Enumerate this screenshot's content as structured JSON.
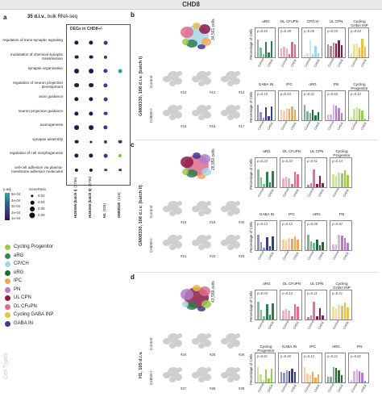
{
  "header": {
    "title": "CHD8"
  },
  "panel_a": {
    "letter": "a",
    "subtitle_prefix": "35 d.i.v.",
    "subtitle_rest": ", bulk RNA-seq",
    "box_title": "DEGs in CHD8+/-",
    "rows": [
      "regulation of trans-synaptic signaling",
      "modulation of chemical synaptic transmission",
      "synapse organization",
      "regulation of neuron projection development",
      "axon guidance",
      "neuron projection guidance",
      "axonogenesis",
      "synapse assembly",
      "regulation of cell morphogenesis",
      "cell-cell adhesion via plasma-membrane adhesion molecules"
    ],
    "columns": [
      "HUES66 (batch I)",
      "HUES66 (batch II)",
      "H1",
      "GM08330"
    ],
    "column_counts": [
      "(3795)",
      "(3796)",
      "(928)",
      "(318)"
    ],
    "padj_label": "p.adj",
    "padj_ticks": [
      "5e-04",
      "4e-04",
      "3e-04",
      "2e-04",
      "1e-04"
    ],
    "gene_ratio_label": "GeneRatio",
    "gene_ratio_ticks": [
      "0.02",
      "0.04",
      "0.06",
      "0.08"
    ],
    "dots": [
      [
        0.06,
        0.06,
        0.05,
        0.0
      ],
      [
        0.05,
        0.05,
        0.04,
        0.0
      ],
      [
        0.07,
        0.07,
        0.06,
        0.05
      ],
      [
        0.07,
        0.07,
        0.06,
        0.0
      ],
      [
        0.06,
        0.06,
        0.05,
        0.0
      ],
      [
        0.06,
        0.06,
        0.05,
        0.0
      ],
      [
        0.07,
        0.07,
        0.06,
        0.0
      ],
      [
        0.05,
        0.02,
        0.04,
        0.05
      ],
      [
        0.06,
        0.06,
        0.05,
        0.04
      ],
      [
        0.04,
        0.04,
        0.03,
        0.03
      ]
    ]
  },
  "cell_types": {
    "title": "Cell Types",
    "items": [
      {
        "label": "Cycling Progenitor",
        "color": "#9acd4a"
      },
      {
        "label": "aRG",
        "color": "#2e8b57"
      },
      {
        "label": "CP/CH",
        "color": "#a7d3e8"
      },
      {
        "label": "oRG",
        "color": "#1f6b3a"
      },
      {
        "label": "IPC",
        "color": "#f0a858"
      },
      {
        "label": "PN",
        "color": "#b37bc9"
      },
      {
        "label": "UL CPN",
        "color": "#8b1a4a"
      },
      {
        "label": "DL CFuPN",
        "color": "#e06b8b"
      },
      {
        "label": "Cycling GABA INP",
        "color": "#e6c14b"
      },
      {
        "label": "GABA IN",
        "color": "#3a3a8e"
      }
    ]
  },
  "panel_b": {
    "letter": "b",
    "row_label": "GM08330, 108 d.i.v. (batch I)",
    "cells": "34,561 cells",
    "control": "Control",
    "mutant": "CHD8+/-",
    "ids": [
      "#12",
      "#13",
      "#14",
      "#15",
      "#16",
      "#17"
    ],
    "charts_top": [
      {
        "title": "aRG",
        "p": "p=0.83"
      },
      {
        "title": "DL CFuPN",
        "p": "p=0.39"
      },
      {
        "title": "CP/CH",
        "p": "p=0.26"
      },
      {
        "title": "UL CPN",
        "p": "p=0.03"
      },
      {
        "title": "Cycling GABA INP",
        "p": "p=0.83"
      }
    ],
    "charts_bottom": [
      {
        "title": "GABA IN",
        "p": "p=0.15"
      },
      {
        "title": "IPC",
        "p": "p=0.83"
      },
      {
        "title": "oRG",
        "p": "p=0.41"
      },
      {
        "title": "PN",
        "p": "p=0.83"
      },
      {
        "title": "Cycling Progenitor",
        "p": "p=0.12"
      }
    ],
    "ylabel": "Percentage of Cells"
  },
  "panel_c": {
    "letter": "c",
    "row_label": "GM08330, 108 d.i.v. (batch II)",
    "cells": "28,950 cells",
    "control": "Control",
    "mutant": "CHD8+/-",
    "ids": [
      "#18",
      "#19",
      "#20",
      "#21",
      "#22",
      "#23"
    ],
    "charts_top": [
      {
        "title": "aRG",
        "p": "p=0.23"
      },
      {
        "title": "DL CFuPN",
        "p": "p=0.32"
      },
      {
        "title": "UL CPN",
        "p": "p=0.51"
      },
      {
        "title": "Cycling Progenitor",
        "p": "p=0.14"
      }
    ],
    "charts_bottom": [
      {
        "title": "GABA IN",
        "p": "p=0.13"
      },
      {
        "title": "IPC",
        "p": "p=0.12"
      },
      {
        "title": "oRG",
        "p": "p=0.05"
      },
      {
        "title": "PN",
        "p": "p=0.42"
      }
    ],
    "ylabel": "Percentage of Cells"
  },
  "panel_d": {
    "letter": "d",
    "row_label": "H1, 105 d.i.v.",
    "cells": "43,559 cells",
    "control": "Control",
    "mutant": "CHD8+/-",
    "ids": [
      "#24",
      "#25",
      "#26",
      "#27",
      "#28",
      "#29"
    ],
    "charts_top": [
      {
        "title": "aRG",
        "p": "p=0.04"
      },
      {
        "title": "DL CFuPN",
        "p": "p=0.12"
      },
      {
        "title": "UL CPN",
        "p": "p=0.11"
      },
      {
        "title": "Cycling GABA INP",
        "p": "p=0.21"
      }
    ],
    "charts_bottom": [
      {
        "title": "Cycling Progenitor",
        "p": "p=0.61"
      },
      {
        "title": "GABA IN",
        "p": "p=0.46"
      },
      {
        "title": "IPC",
        "p": "p=0.12"
      },
      {
        "title": "oRG",
        "p": "p=0.21"
      },
      {
        "title": "PN",
        "p": "p=0.82"
      }
    ],
    "ylabel": "Percentage of Cells"
  },
  "axis_labels": {
    "control": "Control",
    "mutant": "CHD8"
  },
  "colors": {
    "green": "#8fbf4a",
    "darkgreen": "#2e7d4f",
    "lightblue": "#a7d3e8",
    "maroon": "#8b1a4a",
    "pink": "#e06b8b",
    "gold": "#e6c14b",
    "indigo": "#3a3a8e",
    "orange": "#f0a858",
    "purple": "#b37bc9"
  }
}
